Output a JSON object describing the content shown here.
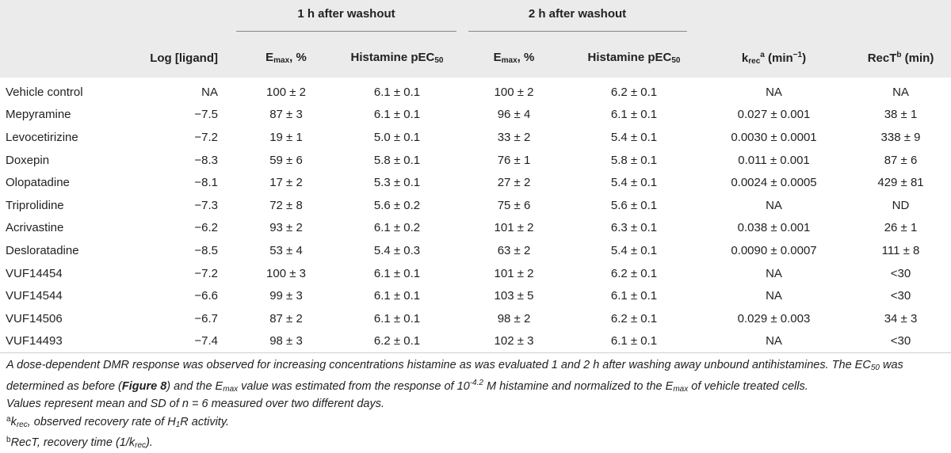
{
  "header": {
    "group1": "1 h after washout",
    "group2": "2 h after washout",
    "col_log": "Log [ligand]",
    "col_emax_main": "E",
    "col_emax_sub": "max",
    "col_emax_tail": ", %",
    "col_pec_main": "Histamine pEC",
    "col_pec_sub": "50",
    "col_krec_main": "k",
    "col_krec_sub": "rec",
    "col_krec_sup": "a",
    "col_krec_tail": " (min",
    "col_krec_sup2": "−1",
    "col_krec_end": ")",
    "col_rect_main": "RecT",
    "col_rect_sup": "b",
    "col_rect_tail": " (min)"
  },
  "rows": [
    {
      "name": "Vehicle control",
      "log": "NA",
      "emax1": "100 ± 2",
      "pec1": "6.1 ± 0.1",
      "emax2": "100 ± 2",
      "pec2": "6.2 ± 0.1",
      "krec": "NA",
      "rect": "NA"
    },
    {
      "name": "Mepyramine",
      "log": "−7.5",
      "emax1": "87 ± 3",
      "pec1": "6.1 ± 0.1",
      "emax2": "96 ± 4",
      "pec2": "6.1 ± 0.1",
      "krec": "0.027 ± 0.001",
      "rect": "38 ± 1"
    },
    {
      "name": "Levocetirizine",
      "log": "−7.2",
      "emax1": "19 ± 1",
      "pec1": "5.0 ± 0.1",
      "emax2": "33 ± 2",
      "pec2": "5.4 ± 0.1",
      "krec": "0.0030 ± 0.0001",
      "rect": "338 ± 9"
    },
    {
      "name": "Doxepin",
      "log": "−8.3",
      "emax1": "59 ± 6",
      "pec1": "5.8 ± 0.1",
      "emax2": "76 ± 1",
      "pec2": "5.8 ± 0.1",
      "krec": "0.011 ± 0.001",
      "rect": "87 ± 6"
    },
    {
      "name": "Olopatadine",
      "log": "−8.1",
      "emax1": "17 ± 2",
      "pec1": "5.3 ± 0.1",
      "emax2": "27 ± 2",
      "pec2": "5.4 ± 0.1",
      "krec": "0.0024 ± 0.0005",
      "rect": "429 ± 81"
    },
    {
      "name": "Triprolidine",
      "log": "−7.3",
      "emax1": "72 ± 8",
      "pec1": "5.6 ± 0.2",
      "emax2": "75 ± 6",
      "pec2": "5.6 ± 0.1",
      "krec": "NA",
      "rect": "ND"
    },
    {
      "name": "Acrivastine",
      "log": "−6.2",
      "emax1": "93 ± 2",
      "pec1": "6.1 ± 0.2",
      "emax2": "101 ± 2",
      "pec2": "6.3 ± 0.1",
      "krec": "0.038 ± 0.001",
      "rect": "26 ± 1"
    },
    {
      "name": "Desloratadine",
      "log": "−8.5",
      "emax1": "53 ± 4",
      "pec1": "5.4 ± 0.3",
      "emax2": "63 ± 2",
      "pec2": "5.4 ± 0.1",
      "krec": "0.0090 ± 0.0007",
      "rect": "111 ± 8"
    },
    {
      "name": "VUF14454",
      "log": "−7.2",
      "emax1": "100 ± 3",
      "pec1": "6.1 ± 0.1",
      "emax2": "101 ± 2",
      "pec2": "6.2 ± 0.1",
      "krec": "NA",
      "rect": "<30"
    },
    {
      "name": "VUF14544",
      "log": "−6.6",
      "emax1": "99 ± 3",
      "pec1": "6.1 ± 0.1",
      "emax2": "103 ± 5",
      "pec2": "6.1 ± 0.1",
      "krec": "NA",
      "rect": "<30"
    },
    {
      "name": "VUF14506",
      "log": "−6.7",
      "emax1": "87 ± 2",
      "pec1": "6.1 ± 0.1",
      "emax2": "98 ± 2",
      "pec2": "6.2 ± 0.1",
      "krec": "0.029 ± 0.003",
      "rect": "34 ± 3"
    },
    {
      "name": "VUF14493",
      "log": "−7.4",
      "emax1": "98 ± 3",
      "pec1": "6.2 ± 0.1",
      "emax2": "102 ± 3",
      "pec2": "6.1 ± 0.1",
      "krec": "NA",
      "rect": "<30"
    }
  ],
  "notes": {
    "p1_a": "A dose-dependent DMR response was observed for increasing concentrations histamine as was evaluated 1 and 2 h after washing away unbound antihistamines. The EC",
    "p1_sub": "50",
    "p1_b": " was determined as before (",
    "p1_fig": "Figure 8",
    "p1_c": ") and the E",
    "p1_sub2": "max",
    "p1_d": " value was estimated from the response of 10",
    "p1_sup": "-4.2",
    "p1_e": " M histamine and normalized to the E",
    "p1_sub3": "max",
    "p1_f": " of vehicle treated cells.",
    "p2": "Values represent mean and SD of n = 6 measured over two different days.",
    "fn_a_mark": "a",
    "fn_a_k": "k",
    "fn_a_sub": "rec",
    "fn_a_text1": ", observed recovery rate of H",
    "fn_a_sub2": "1",
    "fn_a_text2": "R activity.",
    "fn_b_mark": "b",
    "fn_b_text1": "RecT, recovery time (1/k",
    "fn_b_sub": "rec",
    "fn_b_text2": ")."
  }
}
